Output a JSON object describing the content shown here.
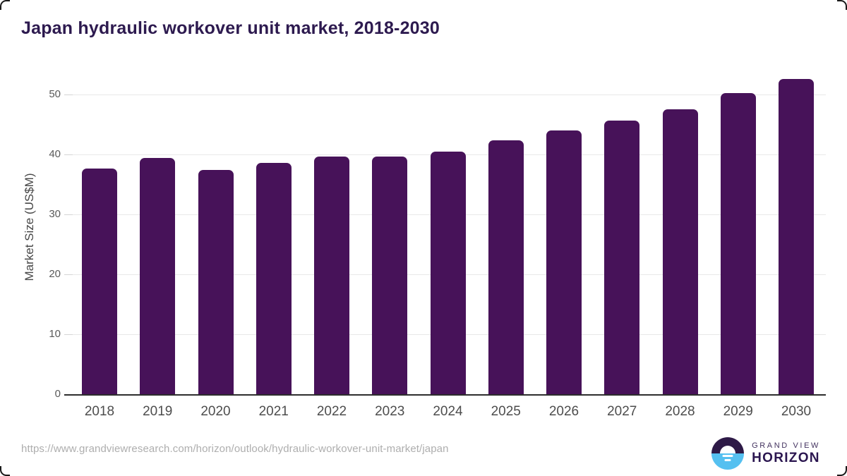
{
  "title": "Japan hydraulic workover unit market, 2018-2030",
  "chart_data": {
    "type": "bar",
    "title": "Japan hydraulic workover unit market, 2018-2030",
    "categories": [
      "2018",
      "2019",
      "2020",
      "2021",
      "2022",
      "2023",
      "2024",
      "2025",
      "2026",
      "2027",
      "2028",
      "2029",
      "2030"
    ],
    "values": [
      37.6,
      39.4,
      37.4,
      38.6,
      39.6,
      39.6,
      40.5,
      42.4,
      44.0,
      45.6,
      47.5,
      50.2,
      52.6
    ],
    "xlabel": "",
    "ylabel": "Market Size (US$M)",
    "ylim": [
      0,
      54
    ],
    "yticks": [
      0,
      10,
      20,
      30,
      40,
      50
    ],
    "grid": true,
    "legend": false,
    "bar_color": "#471259"
  },
  "footer": {
    "source_url": "https://www.grandviewresearch.com/horizon/outlook/hydraulic-workover-unit-market/japan",
    "brand": {
      "line1": "GRAND VIEW",
      "line2": "HORIZON"
    }
  },
  "colors": {
    "title_text": "#2d1a4f",
    "bar": "#471259",
    "axis_text": "#4d4d4d",
    "gridline": "#e8e8e8",
    "axis_line": "#2d2d2d",
    "url_text": "#aeaeae",
    "logo_purple": "#2e1a47",
    "logo_blue": "#55c0f0"
  }
}
